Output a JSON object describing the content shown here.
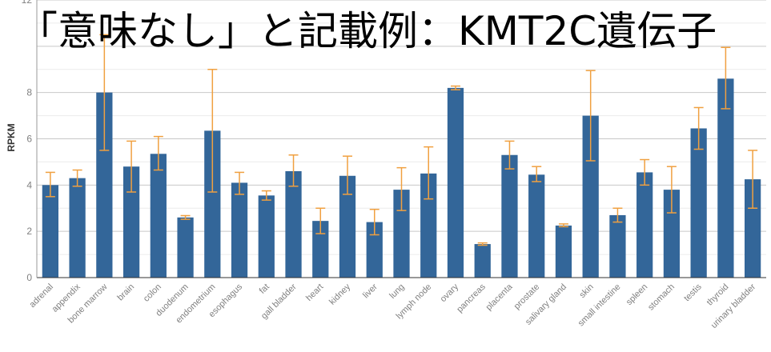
{
  "overlay_title": "「意味なし」と記載例：KMT2C遺伝子",
  "chart_data": {
    "type": "bar",
    "ylabel": "RPKM",
    "ylim": [
      0,
      12
    ],
    "yticks": [
      0,
      2,
      4,
      6,
      8,
      "",
      12
    ],
    "grid": true,
    "categories": [
      "adrenal",
      "appendix",
      "bone marrow",
      "brain",
      "colon",
      "duodenum",
      "endometrium",
      "esophagus",
      "fat",
      "gall bladder",
      "heart",
      "kidney",
      "liver",
      "lung",
      "lymph node",
      "ovary",
      "pancreas",
      "placenta",
      "prostate",
      "salivary gland",
      "skin",
      "small intestine",
      "spleen",
      "stomach",
      "testis",
      "thyroid",
      "urinary bladder"
    ],
    "values": [
      4.0,
      4.3,
      8.0,
      4.8,
      5.35,
      2.6,
      6.35,
      4.1,
      3.55,
      4.6,
      2.45,
      4.4,
      2.4,
      3.8,
      4.5,
      8.2,
      1.45,
      5.3,
      4.45,
      2.25,
      7.0,
      2.7,
      4.55,
      3.8,
      6.45,
      8.6,
      4.25
    ],
    "error_low": [
      3.5,
      3.95,
      5.5,
      3.7,
      4.65,
      2.52,
      3.7,
      3.6,
      3.35,
      3.95,
      1.9,
      3.6,
      1.85,
      2.9,
      3.4,
      8.12,
      1.4,
      4.7,
      4.15,
      2.2,
      5.05,
      2.4,
      4.0,
      2.8,
      5.55,
      7.3,
      3.0
    ],
    "error_high": [
      4.55,
      4.65,
      10.5,
      5.9,
      6.1,
      2.68,
      9.0,
      4.55,
      3.75,
      5.3,
      3.0,
      5.25,
      2.95,
      4.75,
      5.65,
      8.28,
      1.5,
      5.9,
      4.8,
      2.32,
      8.95,
      3.0,
      5.1,
      4.8,
      7.35,
      9.95,
      5.5
    ],
    "colors": {
      "bar": "#336699",
      "error": "#f0a040",
      "grid": "#cccccc",
      "axis": "#333333",
      "tick_label": "#808080",
      "ylabel": "#333333"
    }
  }
}
